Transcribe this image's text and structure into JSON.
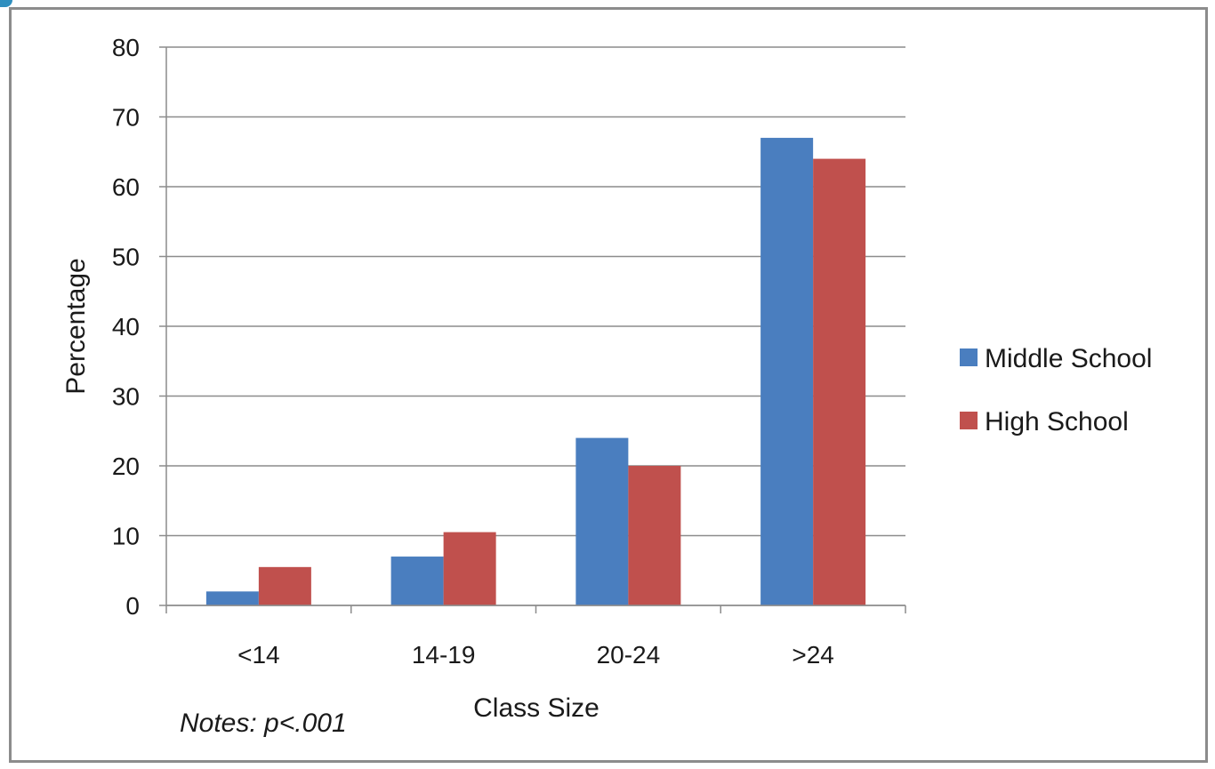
{
  "chart_data": {
    "type": "bar",
    "title": "",
    "xlabel": "Class Size",
    "ylabel": "Percentage",
    "categories": [
      "<14",
      "14-19",
      "20-24",
      ">24"
    ],
    "series": [
      {
        "name": "Middle School",
        "values": [
          2,
          7,
          24,
          67
        ],
        "color": "#4a7ebf"
      },
      {
        "name": "High School",
        "values": [
          5.5,
          10.5,
          20,
          64
        ],
        "color": "#c0504d"
      }
    ],
    "ylim": [
      0,
      80
    ],
    "yticks": [
      0,
      10,
      20,
      30,
      40,
      50,
      60,
      70,
      80
    ],
    "grid": true,
    "legend_position": "right",
    "note": "Notes: p<.001"
  }
}
